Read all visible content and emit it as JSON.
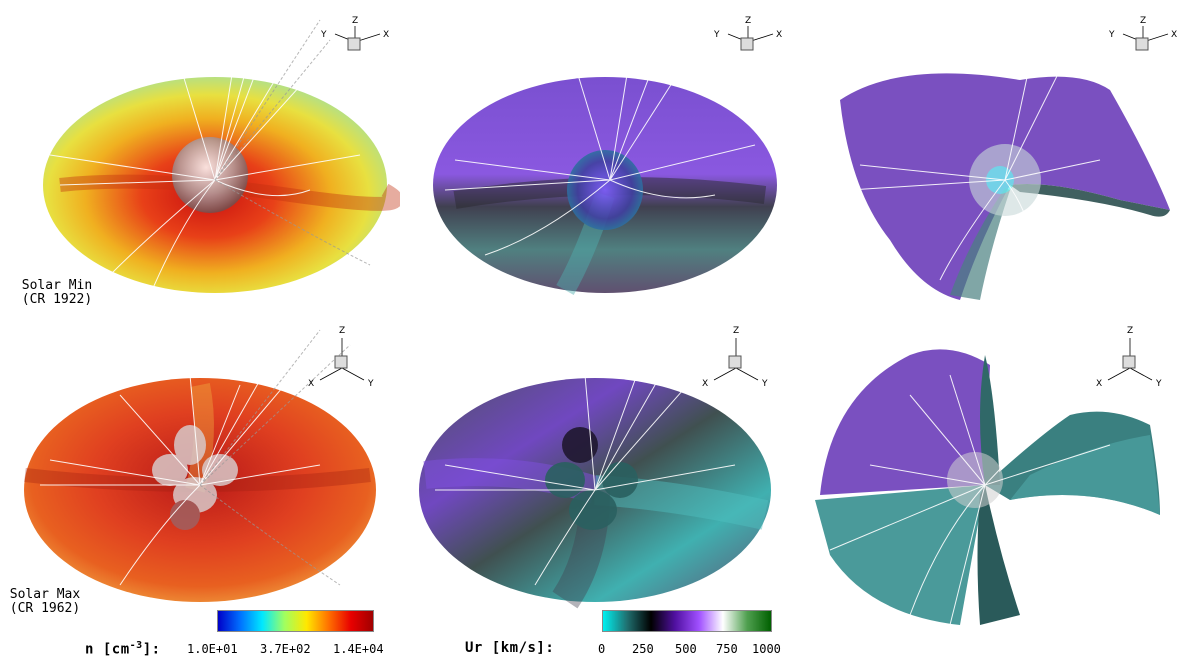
{
  "rows": [
    {
      "label_line1": "Solar Min",
      "label_line2": "(CR 1922)"
    },
    {
      "label_line1": "Solar Max",
      "label_line2": "(CR 1962)"
    }
  ],
  "axes": {
    "top": {
      "z": "Z",
      "left": "Y",
      "right": "X"
    },
    "bottom": {
      "z": "Z",
      "left": "X",
      "right": "Y"
    }
  },
  "density_bar": {
    "label": "n [cm",
    "exponent": "-3",
    "label_tail": "]:",
    "ticks": [
      "1.0E+01",
      "3.7E+02",
      "1.4E+04"
    ],
    "gradient": [
      "#0000c8",
      "#0070ff",
      "#00e8ff",
      "#a0ff60",
      "#ffe800",
      "#ff7000",
      "#e80000",
      "#a00000"
    ]
  },
  "velocity_bar": {
    "label": "Ur [km/s]:",
    "ticks": [
      "0",
      "250",
      "500",
      "750",
      "1000"
    ],
    "gradient": [
      "#00f0f0",
      "#207070",
      "#000000",
      "#5010a0",
      "#a050ff",
      "#ffffff",
      "#50a050",
      "#006000"
    ]
  },
  "colors": {
    "density_hot": "#d82818",
    "density_warm": "#f0a020",
    "density_cool": "#b8e070",
    "velocity_slow": "#40b0b0",
    "velocity_fast": "#9050e0",
    "velocity_mid": "#504060"
  }
}
